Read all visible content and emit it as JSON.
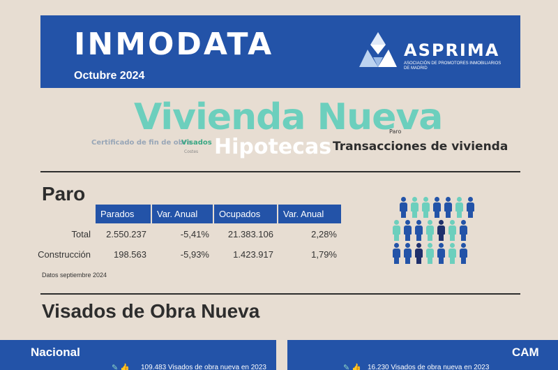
{
  "header": {
    "title": "INMODATA",
    "date": "Octubre 2024",
    "logo": {
      "brand": "ASPRIMA",
      "tagline": "ASOCIACIÓN DE PROMOTORES INMOBILIARIOS DE MADRID"
    }
  },
  "word_cloud": {
    "vivienda_nueva": "Vivienda Nueva",
    "paro": "Paro",
    "certificado": "Certificado de fin de obra",
    "visados": "Visados",
    "costes": "Costes",
    "hipotecas": "Hipotecas",
    "transacciones": "Transacciones de vivienda"
  },
  "paro": {
    "title": "Paro",
    "columns": [
      "Parados",
      "Var. Anual",
      "Ocupados",
      "Var. Anual"
    ],
    "rows": [
      {
        "label": "Total",
        "values": [
          "2.550.237",
          "-5,41%",
          "21.383.106",
          "2,28%"
        ]
      },
      {
        "label": "Construcción",
        "values": [
          "198.563",
          "-5,93%",
          "1.423.917",
          "1,79%"
        ]
      }
    ],
    "note": "Datos septiembre 2024"
  },
  "visados": {
    "title": "Visados de Obra Nueva",
    "nacional": {
      "title": "Nacional",
      "line": "109.483 Visados de obra nueva en 2023"
    },
    "cam": {
      "title": "CAM",
      "line": "16.230 Visados de obra nueva en 2023"
    }
  },
  "colors": {
    "brand_blue": "#2353a8",
    "teal": "#6ccfbd",
    "background": "#e7ddd2"
  }
}
